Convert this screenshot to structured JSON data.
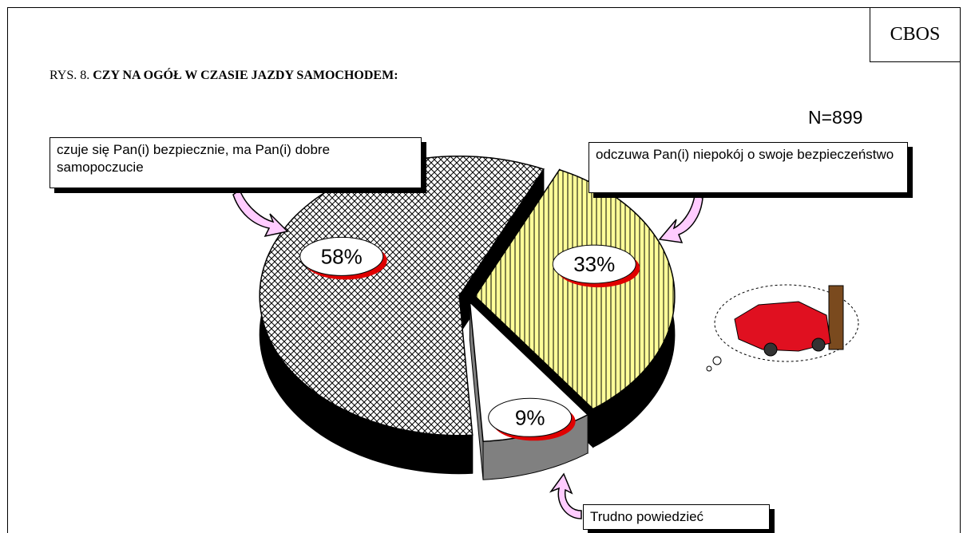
{
  "source": "CBOS",
  "chart_data": {
    "type": "pie",
    "figure_label": "RYS. 8.",
    "title": "CZY NA OGÓŁ W CZASIE JAZDY SAMOCHODEM:",
    "annotation": "N=899",
    "categories": [
      "czuje się Pan(i) bezpiecznie, ma Pan(i) dobre samopoczucie",
      "odczuwa Pan(i) niepokój o swoje bezpieczeństwo",
      "Trudno powiedzieć"
    ],
    "values": [
      58,
      33,
      9
    ],
    "value_labels": [
      "58%",
      "33%",
      "9%"
    ],
    "colors": [
      "#ffffff",
      "#ffff99",
      "#ffffff"
    ],
    "side_colors": [
      "#000000",
      "#000000",
      "#808080"
    ]
  }
}
